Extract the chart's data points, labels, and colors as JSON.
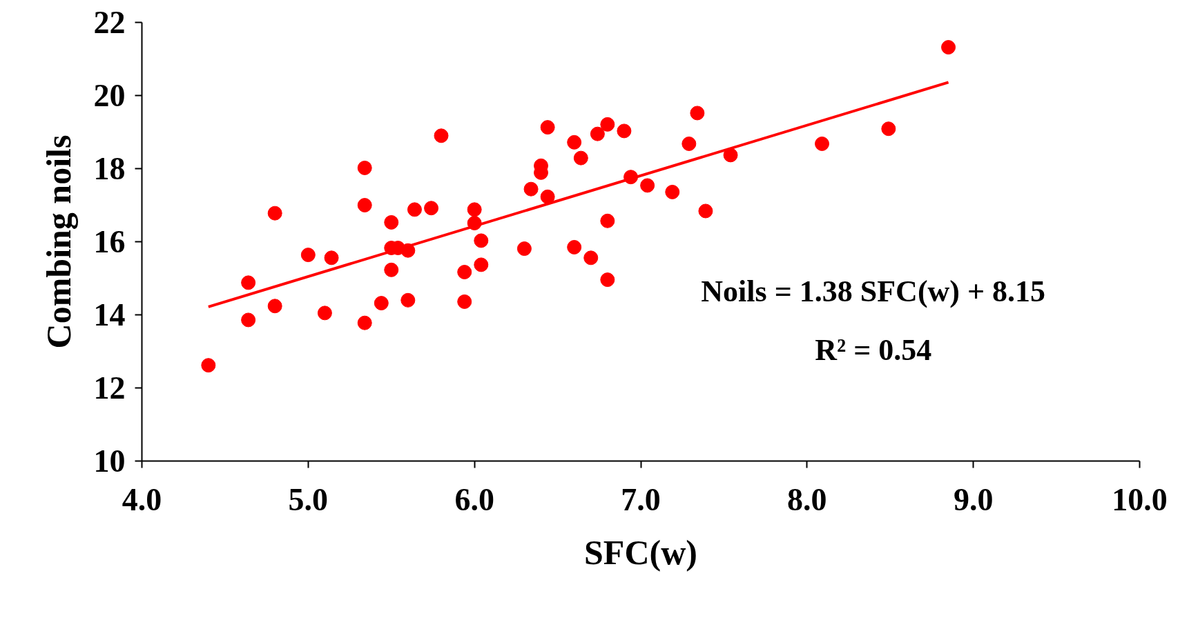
{
  "chart_data": {
    "type": "scatter",
    "xlabel": "SFC(w)",
    "ylabel": "Combing noils",
    "xlim": [
      4.0,
      10.0
    ],
    "xticks": [
      {
        "value": 4,
        "label": "4.0"
      },
      {
        "value": 5,
        "label": "5.0"
      },
      {
        "value": 6,
        "label": "6.0"
      },
      {
        "value": 7,
        "label": "7.0"
      },
      {
        "value": 8,
        "label": "8.0"
      },
      {
        "value": 9,
        "label": "9.0"
      },
      {
        "value": 10,
        "label": "10.0"
      }
    ],
    "ylim": [
      10,
      22
    ],
    "yticks": [
      10,
      12,
      14,
      16,
      18,
      20,
      22
    ],
    "grid": false,
    "series": [
      {
        "marker": "circle",
        "color": "#ff0000",
        "x": [
          4.4,
          4.64,
          4.64,
          4.8,
          4.8,
          5.0,
          5.1,
          5.14,
          5.34,
          5.34,
          5.34,
          5.44,
          5.5,
          5.5,
          5.5,
          5.54,
          5.6,
          5.6,
          5.64,
          5.74,
          5.8,
          5.94,
          5.94,
          6.0,
          6.0,
          6.04,
          6.04,
          6.3,
          6.34,
          6.4,
          6.4,
          6.44,
          6.44,
          6.6,
          6.6,
          6.64,
          6.7,
          6.74,
          6.8,
          6.8,
          6.8,
          6.9,
          6.94,
          7.04,
          7.19,
          7.29,
          7.34,
          7.39,
          7.54,
          8.09,
          8.49,
          8.85
        ],
        "values": [
          12.62,
          14.88,
          13.86,
          16.78,
          14.24,
          15.64,
          14.05,
          15.56,
          18.02,
          17.0,
          13.78,
          14.32,
          16.53,
          15.83,
          15.23,
          15.83,
          15.76,
          14.4,
          16.88,
          16.92,
          18.9,
          15.17,
          14.36,
          16.88,
          16.51,
          16.03,
          15.37,
          15.81,
          17.44,
          18.08,
          17.89,
          19.13,
          17.23,
          18.72,
          15.85,
          18.29,
          15.56,
          18.95,
          19.21,
          16.57,
          14.96,
          19.03,
          17.77,
          17.54,
          17.36,
          18.68,
          19.52,
          16.84,
          18.37,
          18.68,
          19.09,
          21.32
        ]
      },
      {
        "type": "line",
        "marker": "none",
        "color": "#ff0000",
        "x": [
          4.4,
          8.85
        ],
        "values": [
          14.22,
          20.36
        ]
      }
    ],
    "annotations": [
      "Noils = 1.38 SFC(w) + 8.15",
      "R² = 0.54"
    ]
  }
}
